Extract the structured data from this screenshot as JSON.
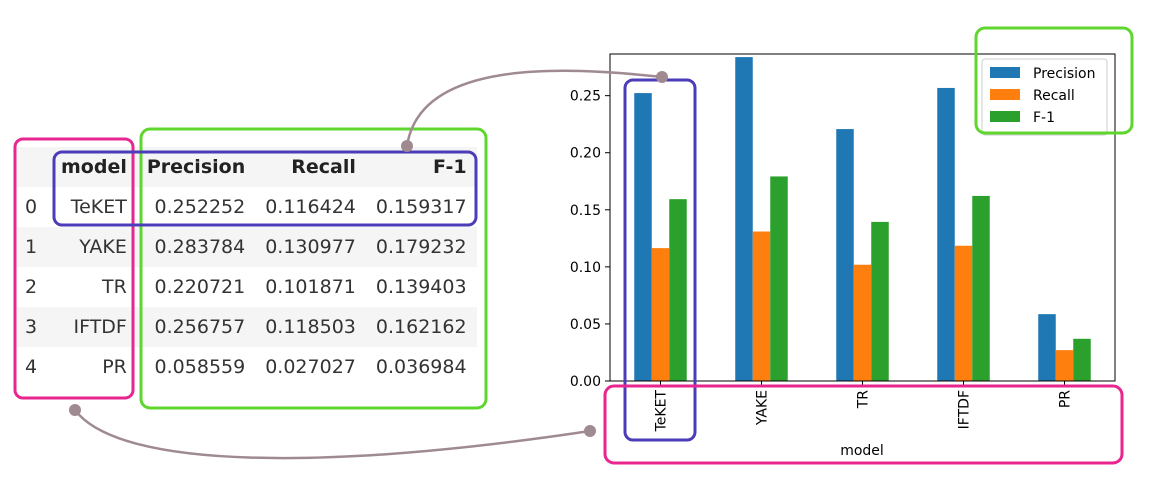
{
  "table": {
    "headers": [
      "",
      "model",
      "Precision",
      "Recall",
      "F-1"
    ],
    "rows": [
      [
        "0",
        "TeKET",
        "0.252252",
        "0.116424",
        "0.159317"
      ],
      [
        "1",
        "YAKE",
        "0.283784",
        "0.130977",
        "0.179232"
      ],
      [
        "2",
        "TR",
        "0.220721",
        "0.101871",
        "0.139403"
      ],
      [
        "3",
        "IFTDF",
        "0.256757",
        "0.118503",
        "0.162162"
      ],
      [
        "4",
        "PR",
        "0.058559",
        "0.027027",
        "0.036984"
      ]
    ]
  },
  "chart_data": {
    "type": "bar",
    "categories": [
      "TeKET",
      "YAKE",
      "TR",
      "IFTDF",
      "PR"
    ],
    "series": [
      {
        "name": "Precision",
        "values": [
          0.252252,
          0.283784,
          0.220721,
          0.256757,
          0.058559
        ],
        "color": "#1f77b4"
      },
      {
        "name": "Recall",
        "values": [
          0.116424,
          0.130977,
          0.101871,
          0.118503,
          0.027027
        ],
        "color": "#ff7f0e"
      },
      {
        "name": "F-1",
        "values": [
          0.159317,
          0.179232,
          0.139403,
          0.162162,
          0.036984
        ],
        "color": "#2ca02c"
      }
    ],
    "title": "",
    "xlabel": "model",
    "ylabel": "",
    "ylim": [
      0,
      0.2865
    ],
    "yticks": [
      "0.00",
      "0.05",
      "0.10",
      "0.15",
      "0.20",
      "0.25"
    ],
    "legend": "top-right",
    "grid": false
  },
  "annotation_colors": {
    "magenta": "#e8268f",
    "green": "#5fd62e",
    "purple": "#4b3cb8",
    "connector": "#a08a92"
  }
}
